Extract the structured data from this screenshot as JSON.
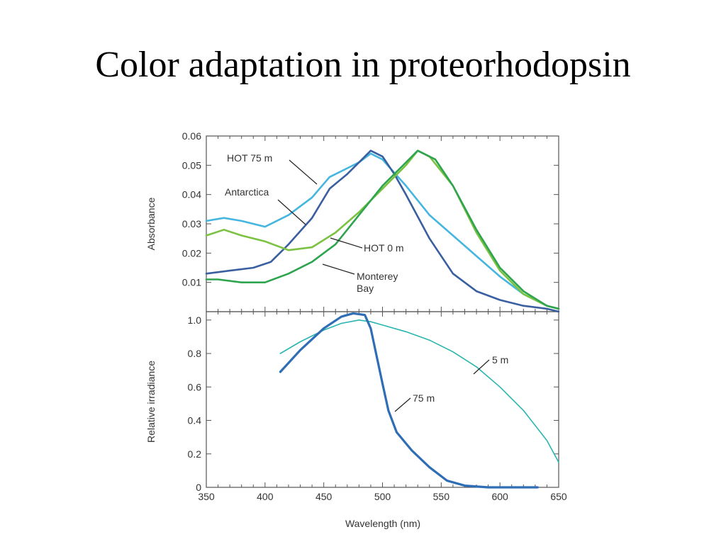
{
  "slide": {
    "title": "Color adaptation in proteorhodopsin"
  },
  "chart_data": [
    {
      "type": "line",
      "ylabel": "Absorbance",
      "xlim": [
        350,
        650
      ],
      "ylim": [
        0,
        0.06
      ],
      "yticks": [
        0.01,
        0.02,
        0.03,
        0.04,
        0.05,
        0.06
      ],
      "yticklabels": [
        "0.01",
        "0.02",
        "0.03",
        "0.04",
        "0.05",
        "0.06"
      ],
      "grid": false,
      "series": [
        {
          "name": "HOT 75 m",
          "color": "#45b6df",
          "x": [
            350,
            365,
            380,
            400,
            420,
            440,
            455,
            470,
            480,
            490,
            500,
            520,
            540,
            560,
            580,
            600,
            620,
            640,
            650
          ],
          "y": [
            0.031,
            0.032,
            0.031,
            0.029,
            0.033,
            0.039,
            0.046,
            0.049,
            0.051,
            0.054,
            0.052,
            0.043,
            0.033,
            0.026,
            0.019,
            0.012,
            0.006,
            0.002,
            0.001
          ]
        },
        {
          "name": "Antarctica",
          "color": "#3a5fa0",
          "x": [
            350,
            370,
            390,
            405,
            420,
            440,
            455,
            470,
            480,
            490,
            500,
            510,
            520,
            540,
            560,
            580,
            600,
            620,
            640,
            650
          ],
          "y": [
            0.013,
            0.014,
            0.015,
            0.017,
            0.023,
            0.032,
            0.042,
            0.047,
            0.051,
            0.055,
            0.053,
            0.047,
            0.04,
            0.025,
            0.013,
            0.007,
            0.004,
            0.002,
            0.001,
            0.0
          ]
        },
        {
          "name": "HOT 0 m",
          "color": "#7cc242",
          "x": [
            350,
            365,
            380,
            400,
            420,
            440,
            460,
            480,
            500,
            520,
            530,
            540,
            560,
            580,
            600,
            620,
            640,
            650
          ],
          "y": [
            0.026,
            0.028,
            0.026,
            0.024,
            0.021,
            0.022,
            0.027,
            0.034,
            0.042,
            0.05,
            0.055,
            0.053,
            0.043,
            0.027,
            0.014,
            0.006,
            0.002,
            0.001
          ]
        },
        {
          "name": "Monterey Bay",
          "color": "#2fa44f",
          "x": [
            350,
            360,
            380,
            400,
            420,
            440,
            460,
            480,
            500,
            515,
            530,
            545,
            560,
            580,
            600,
            620,
            640,
            650
          ],
          "y": [
            0.011,
            0.011,
            0.01,
            0.01,
            0.013,
            0.017,
            0.023,
            0.033,
            0.043,
            0.049,
            0.055,
            0.052,
            0.043,
            0.028,
            0.015,
            0.007,
            0.002,
            0.001
          ]
        }
      ],
      "annotations": [
        "HOT 75 m",
        "Antarctica",
        "HOT 0 m",
        "Monterey",
        "Bay"
      ]
    },
    {
      "type": "line",
      "xlabel": "Wavelength (nm)",
      "ylabel": "Relative irradiance",
      "xlim": [
        350,
        650
      ],
      "ylim": [
        0,
        1.05
      ],
      "xticks": [
        350,
        400,
        450,
        500,
        550,
        600,
        650
      ],
      "xticklabels": [
        "350",
        "400",
        "450",
        "500",
        "550",
        "600",
        "650"
      ],
      "yticks": [
        0,
        0.2,
        0.4,
        0.6,
        0.8,
        1.0
      ],
      "yticklabels": [
        "0",
        "0.2",
        "0.4",
        "0.6",
        "0.8",
        "1.0"
      ],
      "grid": false,
      "series": [
        {
          "name": "5 m",
          "color": "#2ab5b0",
          "x": [
            413,
            430,
            450,
            465,
            480,
            490,
            500,
            520,
            540,
            560,
            580,
            600,
            620,
            640,
            650
          ],
          "y": [
            0.8,
            0.87,
            0.94,
            0.98,
            1.0,
            0.99,
            0.97,
            0.93,
            0.88,
            0.81,
            0.72,
            0.6,
            0.46,
            0.28,
            0.15
          ]
        },
        {
          "name": "75 m",
          "color": "#2f6db5",
          "x": [
            413,
            430,
            450,
            465,
            475,
            485,
            490,
            500,
            505,
            512,
            525,
            540,
            555,
            570,
            590,
            610,
            632
          ],
          "y": [
            0.69,
            0.82,
            0.95,
            1.02,
            1.04,
            1.03,
            0.95,
            0.62,
            0.46,
            0.33,
            0.22,
            0.12,
            0.04,
            0.01,
            0.0,
            0.0,
            0.0
          ]
        }
      ],
      "annotations": [
        "5 m",
        "75 m"
      ]
    }
  ]
}
